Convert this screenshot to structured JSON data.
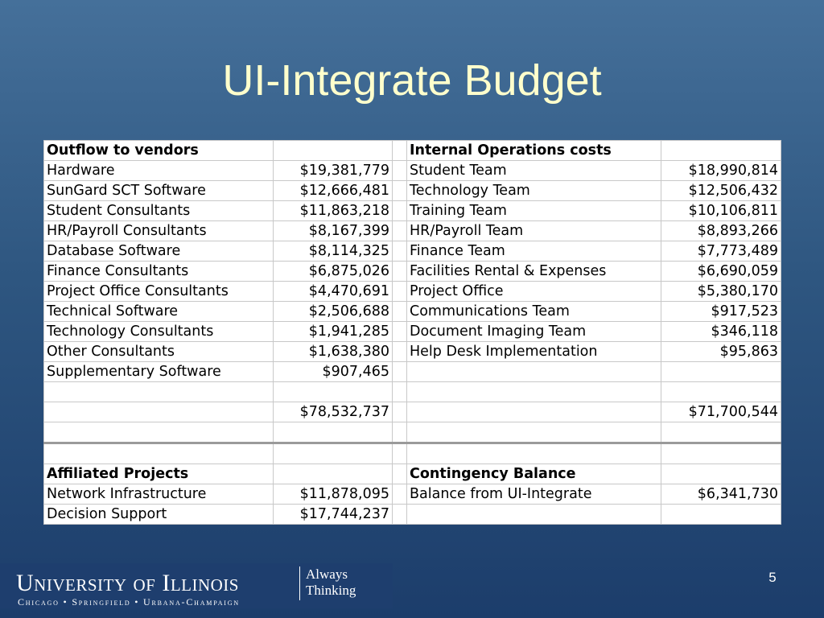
{
  "slide": {
    "title": "UI-Integrate Budget",
    "page_number": "5"
  },
  "table": {
    "rows": [
      [
        "Outflow to vendors",
        "",
        "Internal Operations costs",
        ""
      ],
      [
        "Hardware",
        "$19,381,779",
        "Student Team",
        "$18,990,814"
      ],
      [
        "SunGard SCT Software",
        "$12,666,481",
        "Technology Team",
        "$12,506,432"
      ],
      [
        "Student Consultants",
        "$11,863,218",
        "Training Team",
        "$10,106,811"
      ],
      [
        "HR/Payroll Consultants",
        "$8,167,399",
        "HR/Payroll Team",
        "$8,893,266"
      ],
      [
        "Database Software",
        "$8,114,325",
        "Finance Team",
        "$7,773,489"
      ],
      [
        "Finance Consultants",
        "$6,875,026",
        "Facilities Rental & Expenses",
        "$6,690,059"
      ],
      [
        "Project Office Consultants",
        "$4,470,691",
        "Project Office",
        "$5,380,170"
      ],
      [
        "Technical Software",
        "$2,506,688",
        "Communications Team",
        "$917,523"
      ],
      [
        "Technology Consultants",
        "$1,941,285",
        "Document Imaging Team",
        "$346,118"
      ],
      [
        "Other Consultants",
        "$1,638,380",
        "Help Desk Implementation",
        "$95,863"
      ],
      [
        "Supplementary Software",
        "$907,465",
        "",
        ""
      ],
      [
        "",
        "",
        "",
        ""
      ],
      [
        "",
        "$78,532,737",
        "",
        "$71,700,544"
      ],
      [
        "",
        "",
        "",
        ""
      ],
      [
        "",
        "",
        "",
        ""
      ],
      [
        "Affiliated Projects",
        "",
        "Contingency Balance",
        ""
      ],
      [
        "Network Infrastructure",
        "$11,878,095",
        "Balance from UI-Integrate",
        "$6,341,730"
      ],
      [
        "Decision Support",
        "$17,744,237",
        "",
        ""
      ]
    ]
  },
  "footer": {
    "university_name": "University of Illinois",
    "campuses": "Chicago • Springfield • Urbana-Champaign",
    "tagline_line1": "Always",
    "tagline_line2": "Thinking"
  }
}
